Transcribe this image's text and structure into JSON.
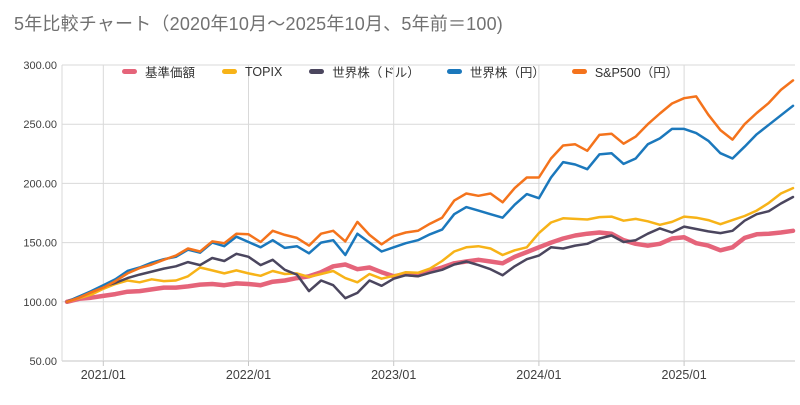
{
  "title": "5年比較チャート（2020年10月～2025年10月、5年前＝100)",
  "palette": {
    "grid": "#d9d9d9",
    "axis_line": "#c6c6c6",
    "axis_text": "#3f3f3f",
    "title_text": "#717171",
    "background": "#ffffff"
  },
  "chart_data": {
    "type": "line",
    "title": "5年比較チャート（2020年10月～2025年10月、5年前＝100)",
    "xlabel": "",
    "ylabel": "",
    "ylim": [
      50,
      300
    ],
    "grid": true,
    "legend_position": "top",
    "y_ticks": [
      300,
      250,
      200,
      150,
      100,
      50
    ],
    "y_tick_labels": [
      "300.00",
      "250.00",
      "200.00",
      "150.00",
      "100.00",
      "50.00"
    ],
    "x_tick_labels": [
      "2021/01",
      "2022/01",
      "2023/01",
      "2024/01",
      "2025/01"
    ],
    "x_tick_indices": [
      3,
      15,
      27,
      39,
      51
    ],
    "x": [
      "2020/10",
      "2020/11",
      "2020/12",
      "2021/01",
      "2021/02",
      "2021/03",
      "2021/04",
      "2021/05",
      "2021/06",
      "2021/07",
      "2021/08",
      "2021/09",
      "2021/10",
      "2021/11",
      "2021/12",
      "2022/01",
      "2022/02",
      "2022/03",
      "2022/04",
      "2022/05",
      "2022/06",
      "2022/07",
      "2022/08",
      "2022/09",
      "2022/10",
      "2022/11",
      "2022/12",
      "2023/01",
      "2023/02",
      "2023/03",
      "2023/04",
      "2023/05",
      "2023/06",
      "2023/07",
      "2023/08",
      "2023/09",
      "2023/10",
      "2023/11",
      "2023/12",
      "2024/01",
      "2024/02",
      "2024/03",
      "2024/04",
      "2024/05",
      "2024/06",
      "2024/07",
      "2024/08",
      "2024/09",
      "2024/10",
      "2024/11",
      "2024/12",
      "2025/01",
      "2025/02",
      "2025/03",
      "2025/04",
      "2025/05",
      "2025/06",
      "2025/07",
      "2025/08",
      "2025/09",
      "2025/10"
    ],
    "series": [
      {
        "name": "基準価額",
        "slug": "fund-price",
        "color": "#e5647a",
        "line_width": 4.5,
        "values": [
          100,
          102.5,
          103.5,
          105,
          106.5,
          108.5,
          109,
          110.5,
          112,
          112,
          113,
          114.5,
          115,
          114,
          115.5,
          115,
          114,
          117,
          118,
          120,
          121.5,
          125,
          130,
          131.5,
          127.5,
          129,
          125,
          121.5,
          123.5,
          122.5,
          126,
          129,
          132.5,
          134,
          135.5,
          134,
          132.5,
          138,
          142,
          146,
          150,
          153.5,
          156,
          157.5,
          158.5,
          157.5,
          152,
          149,
          147.5,
          149,
          153.5,
          154.5,
          149.5,
          147.5,
          143.5,
          146,
          154,
          157,
          157.5,
          158.5,
          160
        ]
      },
      {
        "name": "TOPIX",
        "slug": "topix",
        "color": "#f7b318",
        "line_width": 2.5,
        "values": [
          100,
          103,
          106,
          111,
          115,
          118,
          116.5,
          119,
          117.5,
          118,
          121.5,
          129,
          126.5,
          124,
          126.5,
          124,
          122,
          126,
          123.5,
          124,
          121,
          123.5,
          126,
          120,
          116.5,
          123.5,
          119.5,
          122,
          125,
          124.5,
          128,
          134.5,
          142.5,
          146,
          147,
          145,
          139.5,
          143.5,
          146,
          158,
          167,
          170.5,
          170,
          169.5,
          171.5,
          172,
          168.5,
          170,
          168,
          165,
          167.5,
          172,
          171,
          169,
          165.5,
          169,
          172.5,
          177,
          183.5,
          191.5,
          196
        ]
      },
      {
        "name": "世界株（ドル）",
        "slug": "global-stocks-usd",
        "color": "#4b465e",
        "line_width": 2.5,
        "values": [
          100,
          104.5,
          108.5,
          113,
          116,
          120,
          123,
          125.5,
          128,
          130,
          133.5,
          131,
          137,
          134.5,
          140.5,
          138,
          131,
          135.5,
          127,
          123,
          109,
          118,
          114,
          103,
          107.5,
          118,
          113.5,
          119.5,
          122.5,
          121.5,
          124.5,
          127,
          131.5,
          134,
          131,
          127.5,
          122.5,
          130,
          136,
          139,
          146,
          145,
          147.5,
          149,
          153.5,
          156,
          150.5,
          152,
          157.5,
          162,
          158.5,
          163.5,
          161.5,
          159.5,
          158,
          160,
          168.5,
          174,
          176.5,
          183,
          188.5
        ]
      },
      {
        "name": "世界株（円）",
        "slug": "global-stocks-jpy",
        "color": "#1b78bc",
        "line_width": 2.5,
        "values": [
          100,
          104.5,
          109,
          114,
          119,
          126,
          129,
          133,
          136,
          138,
          144,
          141.5,
          150,
          147,
          155,
          150.5,
          146,
          152,
          145.5,
          147,
          141,
          150,
          152,
          139.5,
          157.5,
          150,
          142.5,
          146,
          149.5,
          152,
          157,
          161,
          174,
          180,
          177,
          174,
          171,
          182,
          191,
          187.5,
          205,
          218,
          216,
          212,
          224.5,
          225.5,
          216.5,
          221,
          233,
          238,
          246,
          246,
          242.5,
          236,
          225.5,
          221,
          231,
          241.5,
          249.5,
          257.5,
          265.5
        ]
      },
      {
        "name": "S&P500（円）",
        "slug": "sp500-jpy",
        "color": "#f4731c",
        "line_width": 2.5,
        "values": [
          100,
          103.5,
          108,
          112,
          117.5,
          124,
          128.5,
          131.5,
          135.5,
          139,
          145,
          142.5,
          151,
          149.5,
          157.5,
          157,
          150.5,
          160,
          156.5,
          154,
          147.5,
          157.5,
          160,
          151,
          167.5,
          156.5,
          148.5,
          155.5,
          158.5,
          160,
          166,
          171,
          185.5,
          191.5,
          189.5,
          191.5,
          184,
          196,
          205,
          205,
          221,
          232,
          233,
          227.5,
          241,
          242,
          233.5,
          239.5,
          250,
          259,
          267.5,
          272,
          273.5,
          258,
          245,
          237,
          250,
          259.5,
          268,
          279,
          287
        ]
      }
    ]
  }
}
